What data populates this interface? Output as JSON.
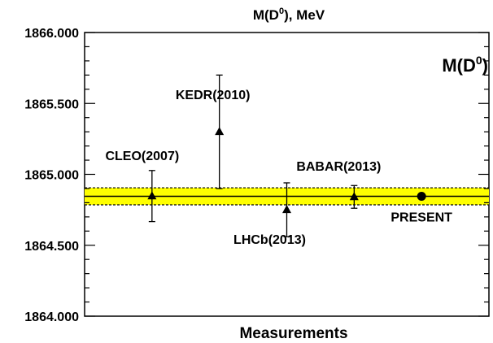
{
  "chart_data": {
    "type": "scatter",
    "title": "M(D",
    "title_sup": "0",
    "title_suffix": "), MeV",
    "xlabel": "Measurements",
    "ylabel": "",
    "ylim": [
      1864.0,
      1866.0
    ],
    "yticks": [
      "1864.000",
      "1864.500",
      "1865.000",
      "1865.500",
      "1866.000"
    ],
    "ytick_values": [
      1864.0,
      1864.5,
      1865.0,
      1865.5,
      1866.0
    ],
    "xlim": [
      0,
      6
    ],
    "grid": false,
    "band": {
      "value": 1864.845,
      "lower": 1864.785,
      "upper": 1864.905,
      "color": "#ffff00"
    },
    "annotation": {
      "text": "M(D",
      "sup": "0",
      "suffix": ")"
    },
    "points": [
      {
        "label": "CLEO(2007)",
        "x": 1,
        "y": 1864.847,
        "err": 0.18,
        "marker": "triangle"
      },
      {
        "label": "KEDR(2010)",
        "x": 2,
        "y": 1865.3,
        "err": 0.4,
        "marker": "triangle"
      },
      {
        "label": "LHCb(2013)",
        "x": 3,
        "y": 1864.75,
        "err": 0.19,
        "marker": "triangle"
      },
      {
        "label": "BABAR(2013)",
        "x": 4,
        "y": 1864.841,
        "err": 0.08,
        "marker": "triangle"
      },
      {
        "label": "PRESENT",
        "x": 5,
        "y": 1864.845,
        "err": 0.0,
        "marker": "circle"
      }
    ]
  }
}
